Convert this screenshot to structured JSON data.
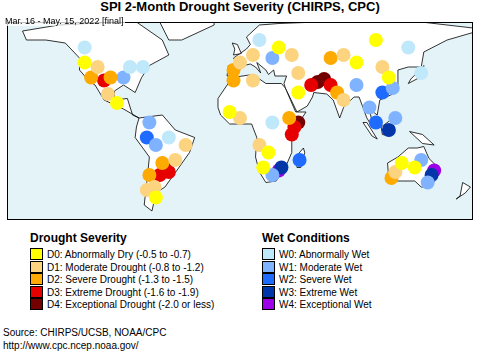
{
  "chart_data": {
    "type": "scatter",
    "title": "SPI 2-Month Drought Severity (CHIRPS, CPC)",
    "subtitle": "Mar. 16 - May. 15, 2022 [final]",
    "annotations": [
      "Source: CHIRPS/UCSB, NOAA/CPC",
      "http://www.cpc.ncep.noaa.gov/"
    ],
    "xlim": [
      -180,
      180
    ],
    "ylim": [
      -60,
      72
    ],
    "tick_labels": false,
    "grid": false,
    "series": [
      {
        "name": "D0: Abnormally Dry (-0.5 to -0.7)",
        "group": "Drought Severity",
        "color": "#ffff00",
        "x": [
          -120,
          -95,
          -8,
          22,
          18,
          30,
          90,
          115,
          105,
          45,
          -65,
          125,
          135
        ],
        "values": [
          45,
          18,
          12,
          -15,
          -25,
          55,
          45,
          35,
          60,
          25,
          -45,
          -22,
          -25
        ]
      },
      {
        "name": "D1: Moderate Drought (-0.8 to -1.2)",
        "group": "Drought Severity",
        "color": "#fcd37f",
        "x": [
          -110,
          -102,
          -50,
          -72,
          -66,
          -42,
          15,
          0,
          10,
          0,
          10,
          40,
          80,
          45,
          80,
          110,
          120
        ],
        "values": [
          42,
          24,
          -20,
          -40,
          -38,
          -10,
          -10,
          8,
          33,
          45,
          50,
          50,
          20,
          38,
          50,
          42,
          -28
        ]
      },
      {
        "name": "D2: Severe Drought (-1.3 to -1.5)",
        "group": "Drought Severity",
        "color": "#ffaa00",
        "x": [
          -115,
          -100,
          -60,
          -70,
          38,
          -5,
          -5,
          75,
          70,
          117
        ],
        "values": [
          35,
          35,
          -22,
          -30,
          8,
          33,
          40,
          25,
          48,
          -32
        ]
      },
      {
        "name": "D3: Extreme Drought (-1.6 to -1.9)",
        "group": "Drought Severity",
        "color": "#e60000",
        "x": [
          -105,
          -55,
          -62,
          42,
          40,
          55,
          70
        ],
        "values": [
          33,
          -28,
          -30,
          2,
          -3,
          30,
          30
        ]
      },
      {
        "name": "D4: Exceptional Drought (-2.0 or less)",
        "group": "Drought Severity",
        "color": "#730000",
        "x": [
          -58,
          45,
          60,
          65
        ],
        "values": [
          -25,
          5,
          32,
          34
        ]
      },
      {
        "name": "W0: Abnormally Wet",
        "group": "Wet Conditions",
        "color": "#bfe8fb",
        "x": [
          -85,
          -75,
          -120,
          -55,
          25,
          15,
          140,
          130
        ],
        "values": [
          42,
          42,
          55,
          -5,
          5,
          60,
          38,
          55
        ]
      },
      {
        "name": "W1: Moderate Wet",
        "group": "Wet Conditions",
        "color": "#80b3ff",
        "x": [
          -90,
          -65,
          -70,
          25,
          25,
          118,
          100,
          120,
          90,
          145,
          140
        ],
        "values": [
          35,
          -10,
          5,
          -30,
          48,
          28,
          15,
          8,
          30,
          -35,
          -20
        ]
      },
      {
        "name": "W2: Severe Wet",
        "group": "Wet Conditions",
        "color": "#1f6bff",
        "x": [
          -72,
          46,
          110,
          105
        ],
        "values": [
          -5,
          -20,
          25,
          5
        ]
      },
      {
        "name": "W3: Extreme Wet",
        "group": "Wet Conditions",
        "color": "#0036a8",
        "x": [
          32,
          115,
          148
        ],
        "values": [
          -25,
          0,
          -30
        ]
      },
      {
        "name": "W4: Exceptional Wet",
        "group": "Wet Conditions",
        "color": "#9c00e6",
        "x": [
          30,
          150
        ],
        "values": [
          -27,
          -27
        ]
      }
    ]
  }
}
